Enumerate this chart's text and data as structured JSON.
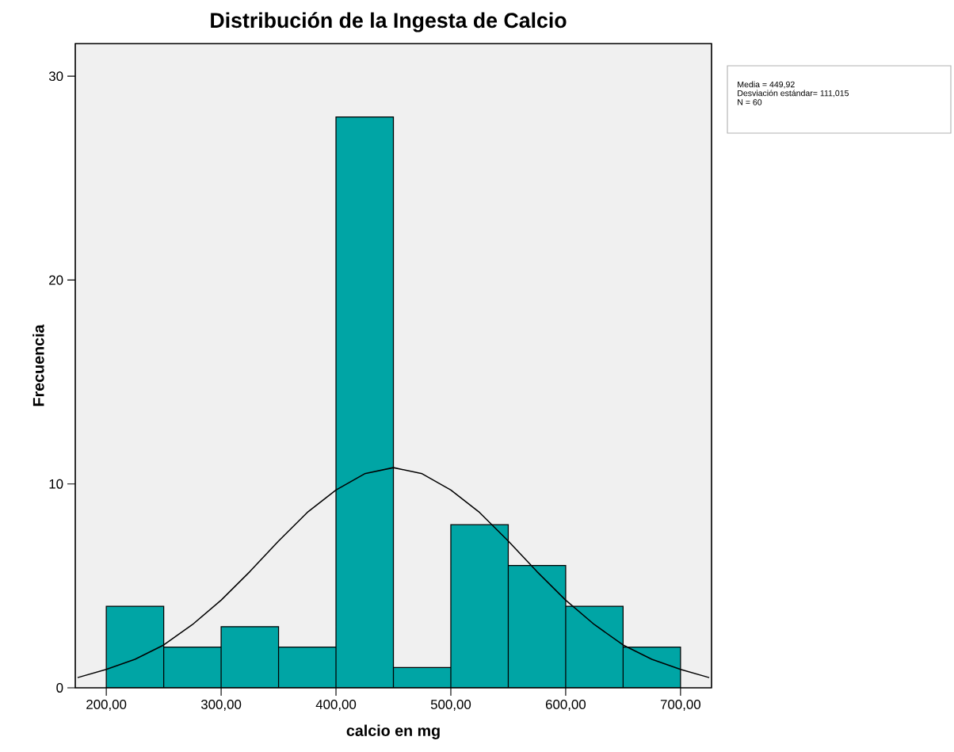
{
  "chart_data": {
    "type": "histogram",
    "title": "Distribución de la Ingesta de Calcio",
    "xlabel": "calcio en mg",
    "ylabel": "Frecuencia",
    "bins": [
      200,
      250,
      300,
      350,
      400,
      450,
      500,
      550,
      600,
      650,
      700
    ],
    "values": [
      4,
      2,
      3,
      2,
      28,
      1,
      8,
      6,
      4,
      2
    ],
    "color": "#00a5a5",
    "series": [
      {
        "type": "line",
        "color": "#000000",
        "x": [
          175,
          200,
          225,
          250,
          275,
          300,
          325,
          350,
          375,
          400,
          425,
          450,
          475,
          500,
          525,
          550,
          575,
          600,
          625,
          650,
          675,
          700,
          725
        ],
        "values": [
          0.5,
          0.9,
          1.4,
          2.1,
          3.1,
          4.3,
          5.7,
          7.2,
          8.6,
          9.7,
          10.5,
          10.8,
          10.5,
          9.7,
          8.6,
          7.2,
          5.7,
          4.3,
          3.1,
          2.1,
          1.4,
          0.9,
          0.5
        ]
      }
    ],
    "xlim": [
      173,
      727
    ],
    "ylim": [
      0,
      31.6
    ],
    "xticks": [
      {
        "value": 200,
        "label": "200,00"
      },
      {
        "value": 300,
        "label": "300,00"
      },
      {
        "value": 400,
        "label": "400,00"
      },
      {
        "value": 500,
        "label": "500,00"
      },
      {
        "value": 600,
        "label": "600,00"
      },
      {
        "value": 700,
        "label": "700,00"
      }
    ],
    "yticks": [
      0,
      10,
      20,
      30
    ],
    "annotations": [
      "Media = 449,92",
      "Desviación estándar= 111,015",
      "N = 60"
    ]
  }
}
